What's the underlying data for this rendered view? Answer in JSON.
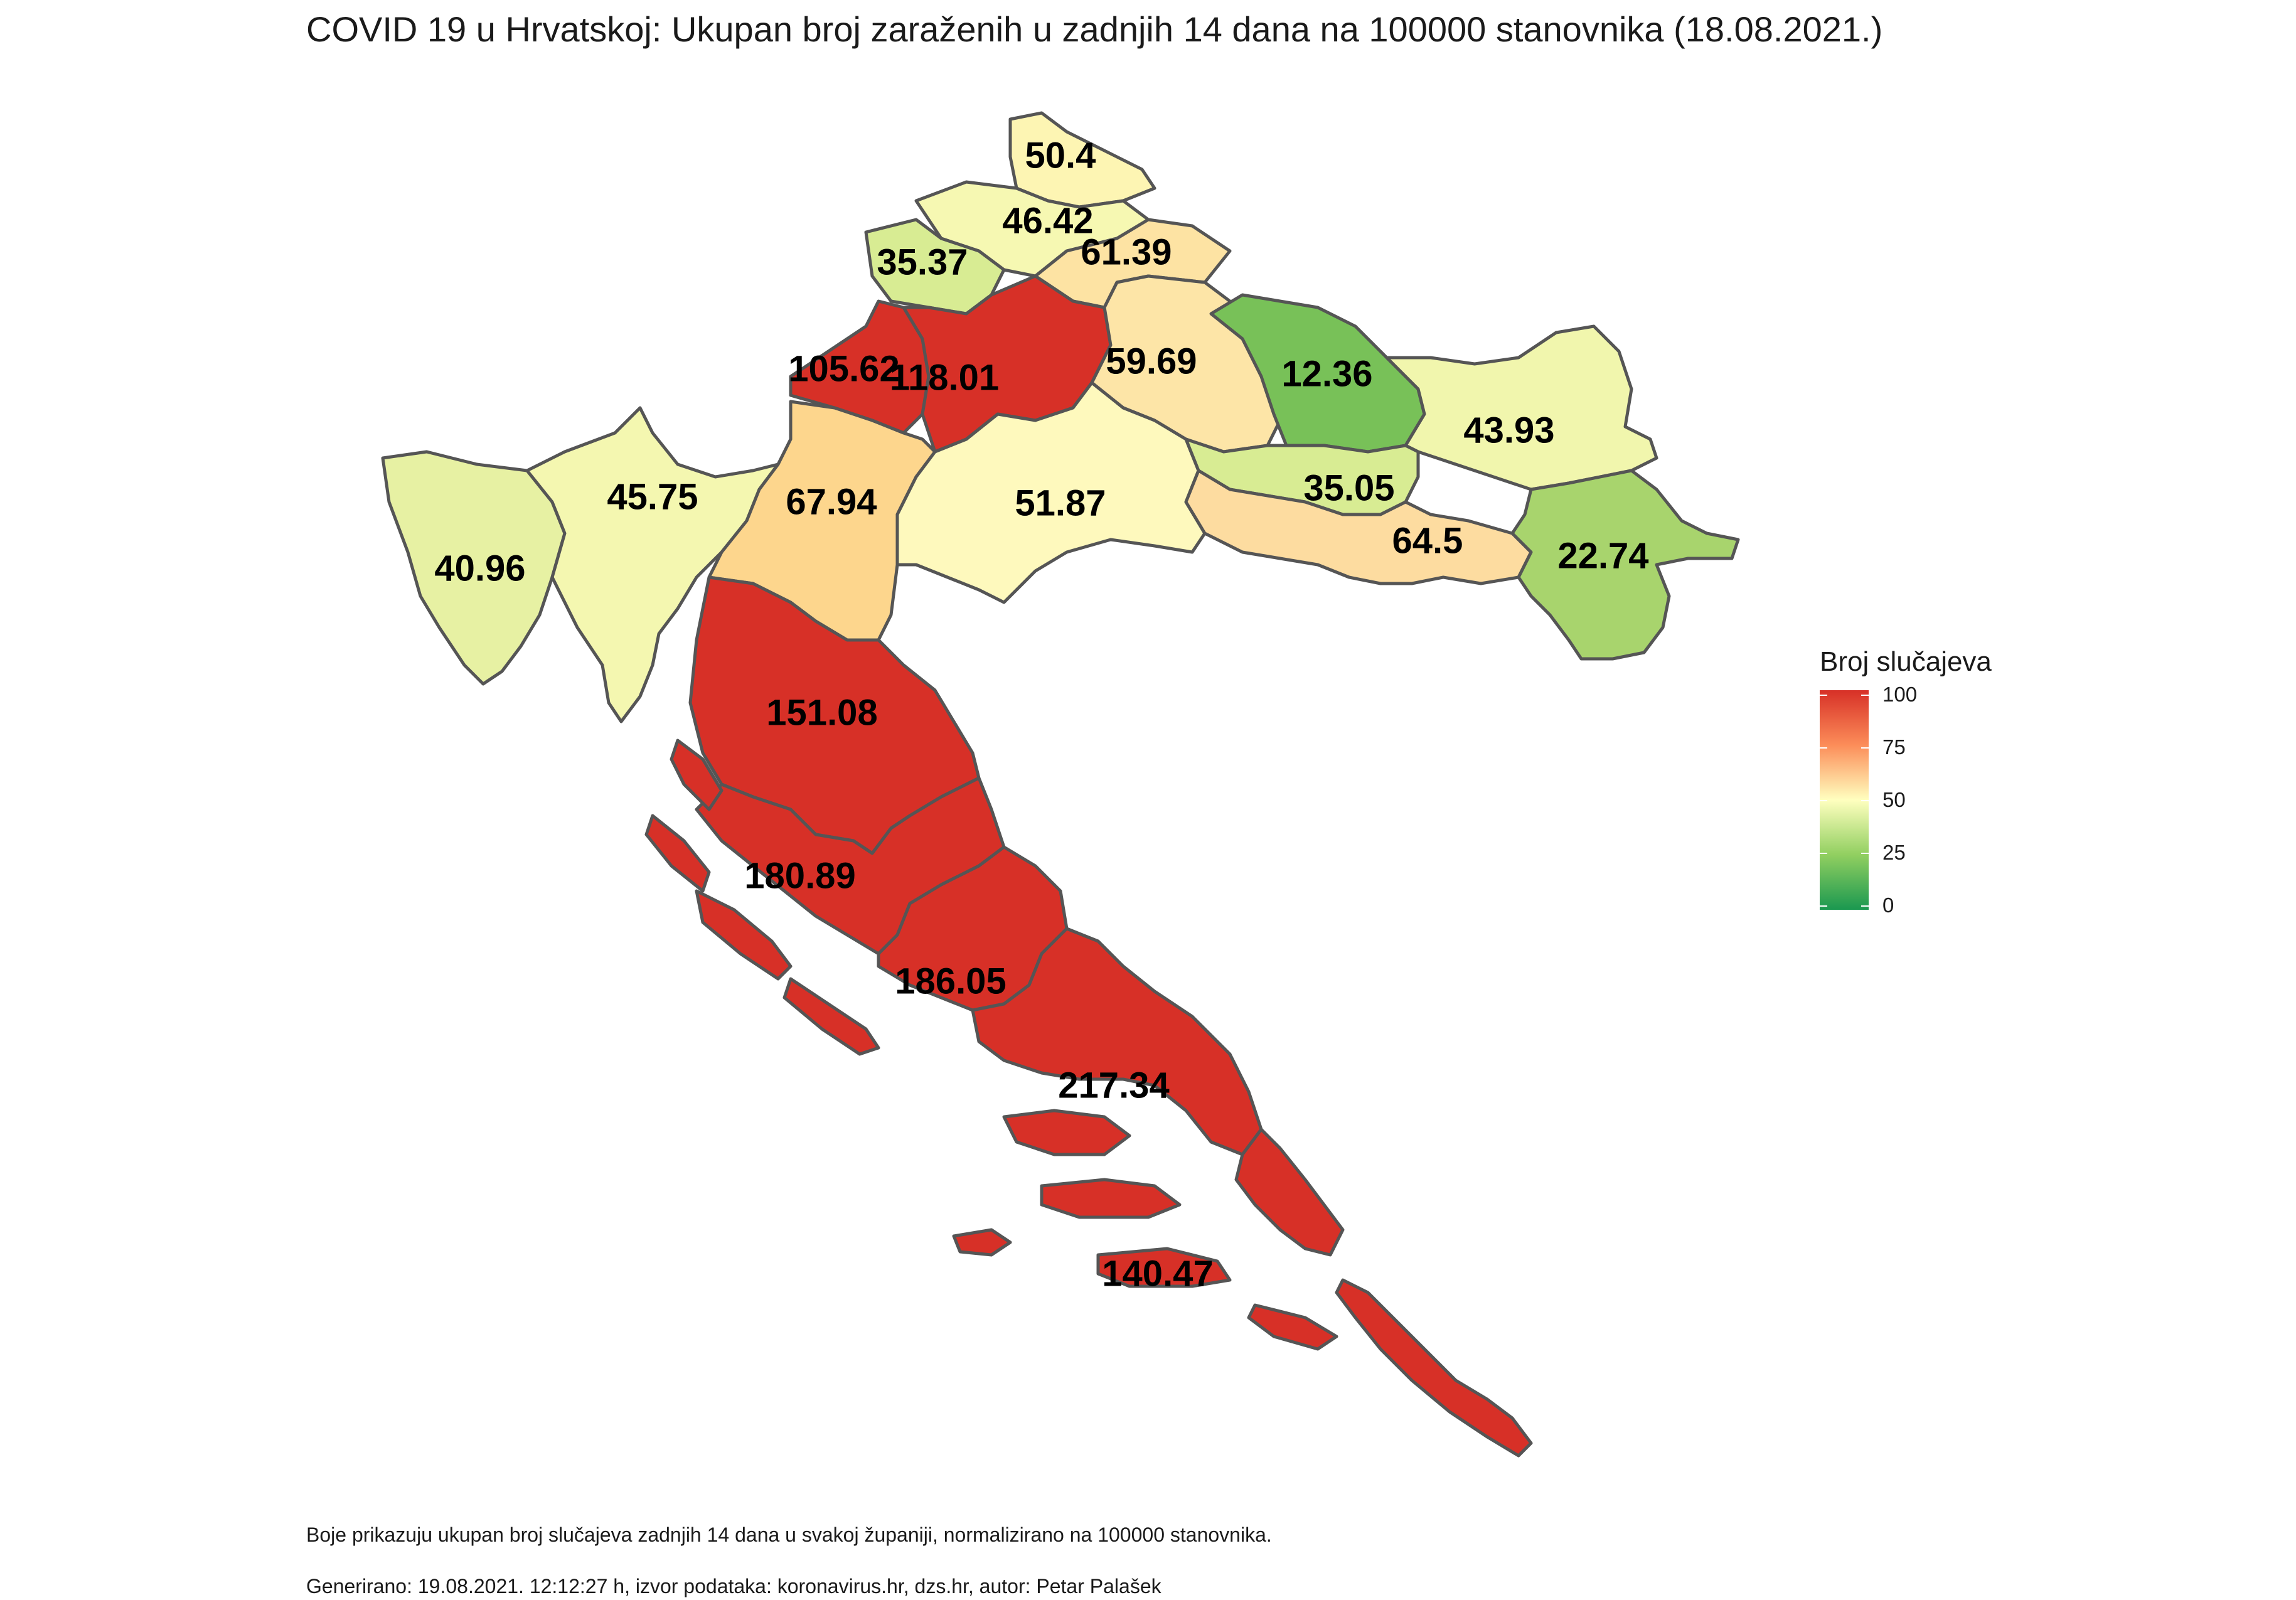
{
  "title": "COVID 19 u Hrvatskoj: Ukupan broj zaraženih u zadnjih 14 dana na 100000 stanovnika (18.08.2021.)",
  "legend": {
    "title": "Broj slučajeva",
    "ticks": [
      "100",
      "75",
      "50",
      "25",
      "0"
    ],
    "scale": [
      0,
      100
    ],
    "colors": [
      "#1a9850",
      "#91cf60",
      "#ffffbf",
      "#fc8d59",
      "#d73027"
    ]
  },
  "regions": [
    {
      "id": "medimurska",
      "value": "50.4",
      "color": "#fdf5b3"
    },
    {
      "id": "varazdinska",
      "value": "46.42",
      "color": "#f6f8b2"
    },
    {
      "id": "krapinsko-zagorska",
      "value": "35.37",
      "color": "#d8ec93"
    },
    {
      "id": "koprivnicko-krizevacka",
      "value": "61.39",
      "color": "#fde3a3"
    },
    {
      "id": "grad-zagreb",
      "value": "105.62",
      "color": "#d73027"
    },
    {
      "id": "zagrebacka",
      "value": "118.01",
      "color": "#d73027"
    },
    {
      "id": "bjelovarsko-bilogorska",
      "value": "59.69",
      "color": "#fde5a7"
    },
    {
      "id": "viroviticko-podravska",
      "value": "12.36",
      "color": "#78c158"
    },
    {
      "id": "osjecko-baranjska",
      "value": "43.93",
      "color": "#f1f6ad"
    },
    {
      "id": "istarska",
      "value": "40.96",
      "color": "#e7f1a3"
    },
    {
      "id": "primorsko-goranska",
      "value": "45.75",
      "color": "#f4f7b0"
    },
    {
      "id": "karlovacka",
      "value": "67.94",
      "color": "#fdd68d"
    },
    {
      "id": "sisacko-moslavacka",
      "value": "51.87",
      "color": "#fef9bd"
    },
    {
      "id": "pozesko-slavonska",
      "value": "35.05",
      "color": "#d8ec93"
    },
    {
      "id": "brodsko-posavska",
      "value": "64.5",
      "color": "#fddca0"
    },
    {
      "id": "vukovarsko-srijemska",
      "value": "22.74",
      "color": "#a8d46d"
    },
    {
      "id": "licko-senjska",
      "value": "151.08",
      "color": "#d73027"
    },
    {
      "id": "zadarska",
      "value": "180.89",
      "color": "#d73027"
    },
    {
      "id": "sibensko-kninska",
      "value": "186.05",
      "color": "#d73027"
    },
    {
      "id": "splitsko-dalmatinska",
      "value": "217.34",
      "color": "#d73027"
    },
    {
      "id": "dubrovacko-neretvanska",
      "value": "140.47",
      "color": "#d73027"
    }
  ],
  "footer": {
    "line1": "Boje prikazuju ukupan broj slučajeva zadnjih 14 dana u svakoj županiji, normalizirano na 100000 stanovnika.",
    "line2": "Generirano: 19.08.2021. 12:12:27 h, izvor podataka: koronavirus.hr, dzs.hr, autor: Petar Palašek"
  }
}
